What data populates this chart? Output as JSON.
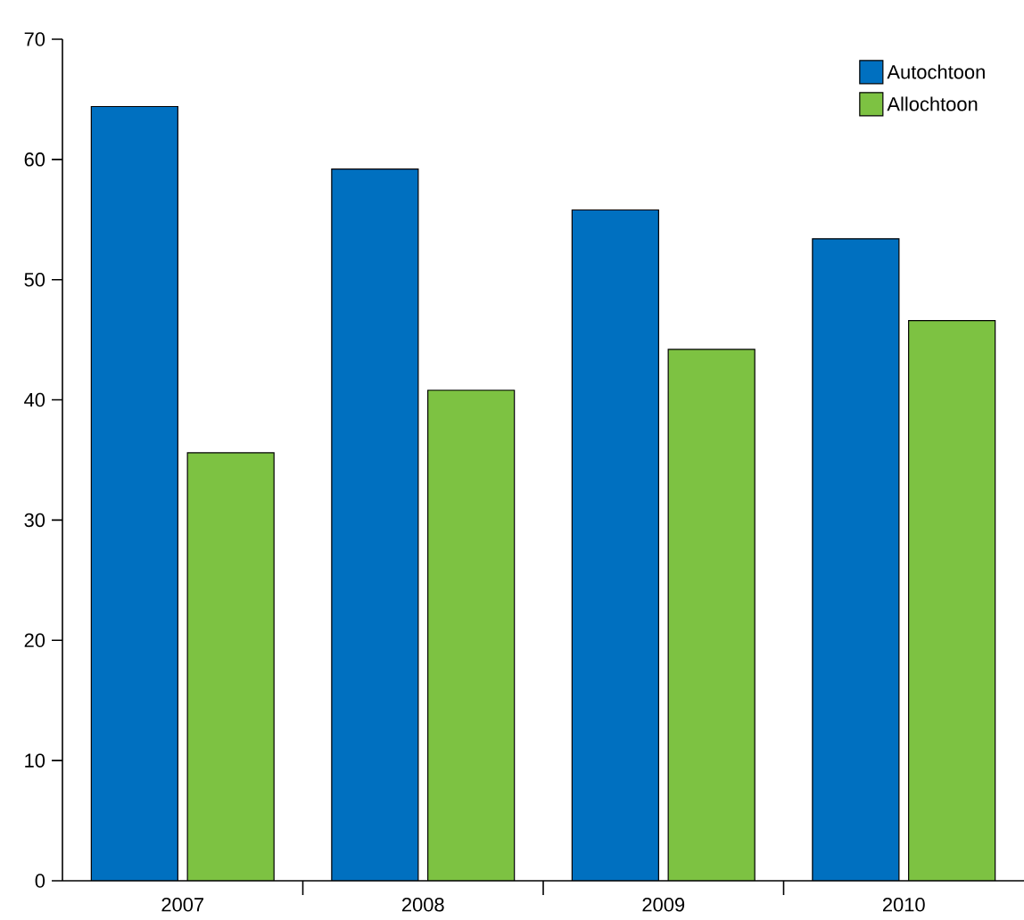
{
  "chart_data": {
    "type": "bar",
    "categories": [
      "2007",
      "2008",
      "2009",
      "2010"
    ],
    "series": [
      {
        "name": "Autochtoon",
        "color": "#0070c0",
        "values": [
          64.4,
          59.2,
          55.8,
          53.4
        ]
      },
      {
        "name": "Allochtoon",
        "color": "#7dc242",
        "values": [
          35.6,
          40.8,
          44.2,
          46.6
        ]
      }
    ],
    "ylim": [
      0,
      70
    ],
    "yticks": [
      0,
      10,
      20,
      30,
      40,
      50,
      60,
      70
    ],
    "grid": false,
    "legend": "top right"
  }
}
